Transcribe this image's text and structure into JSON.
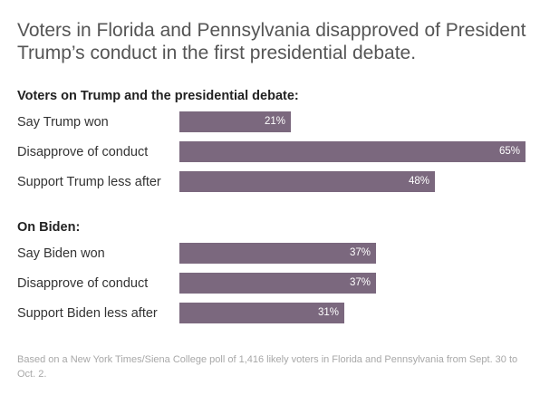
{
  "title": "Voters in Florida and Pennsylvania disapproved of President Trump’s conduct in the first presidential debate.",
  "footnote": "Based on a New York Times/Siena College poll of 1,416 likely voters in Florida and Pennsylvania from Sept. 30 to Oct. 2.",
  "colors": {
    "bar": "#7b687e",
    "bar_text": "#ffffff"
  },
  "chart_data": {
    "type": "bar",
    "orientation": "horizontal",
    "unit": "%",
    "xlim": [
      0,
      65
    ],
    "grid": false,
    "legend": "none",
    "groups": [
      {
        "title": "Voters on Trump and the presidential debate:",
        "categories": [
          "Say Trump won",
          "Disapprove of conduct",
          "Support Trump less after"
        ],
        "values": [
          21,
          65,
          48
        ],
        "value_labels": [
          "21%",
          "65%",
          "48%"
        ]
      },
      {
        "title": "On Biden:",
        "categories": [
          "Say Biden won",
          "Disapprove of conduct",
          "Support Biden less after"
        ],
        "values": [
          37,
          37,
          31
        ],
        "value_labels": [
          "37%",
          "37%",
          "31%"
        ]
      }
    ]
  }
}
